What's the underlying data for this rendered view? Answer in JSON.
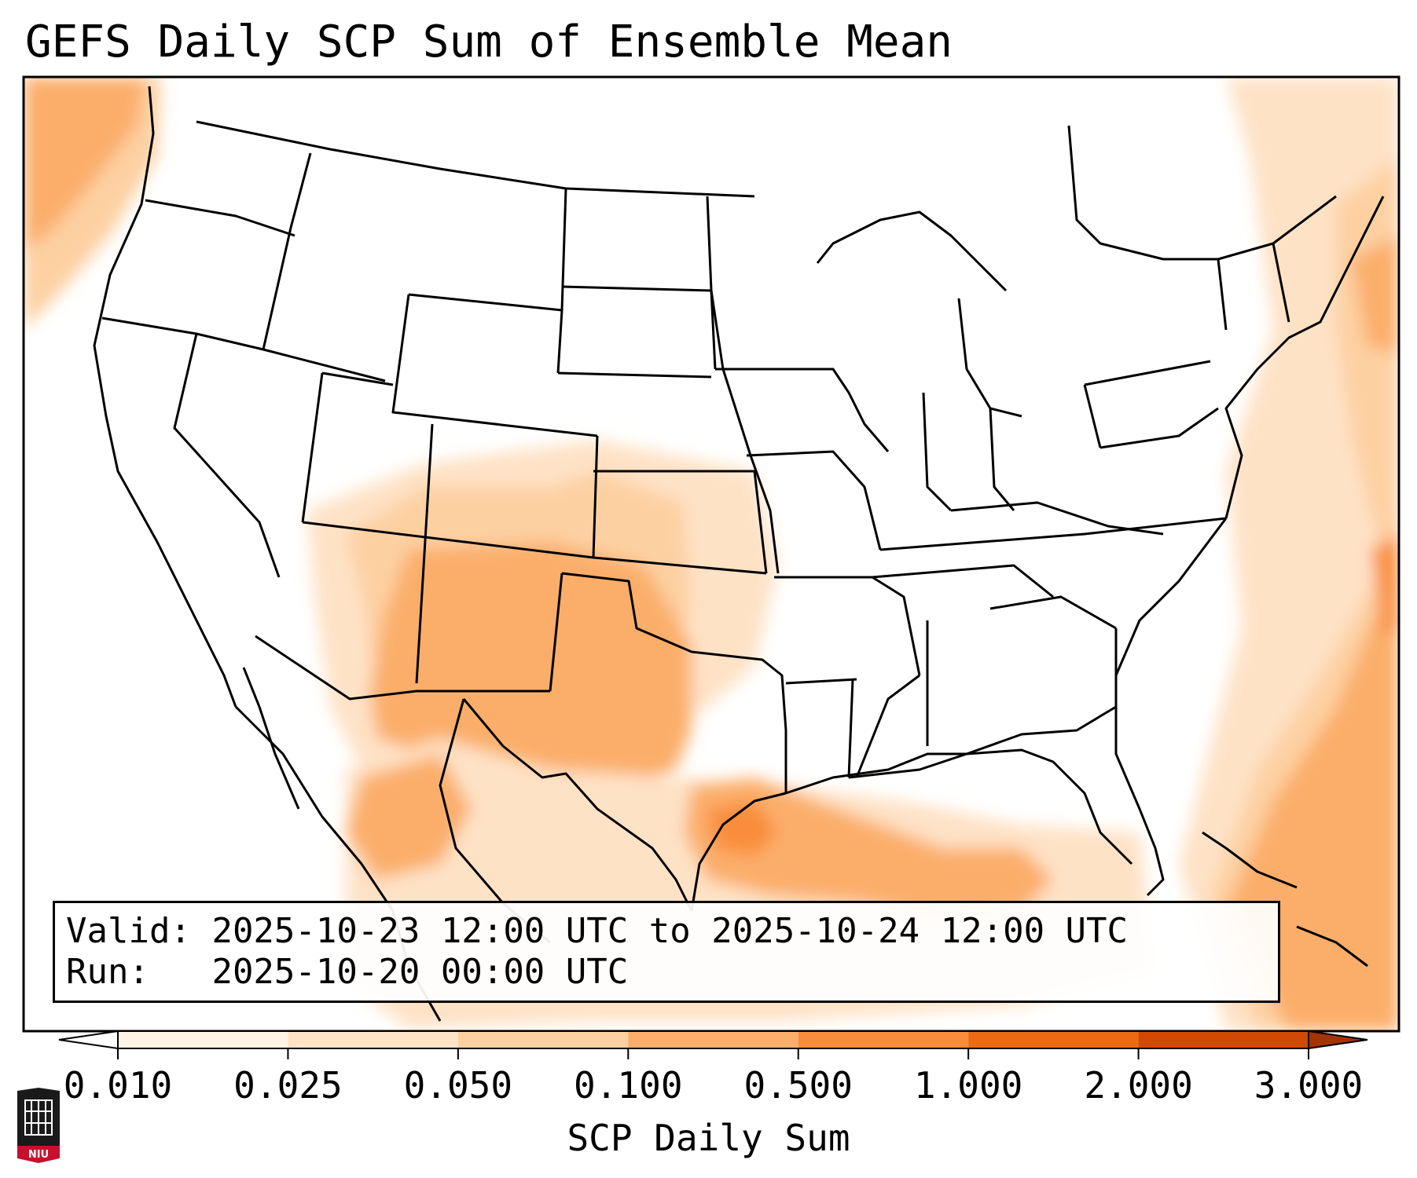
{
  "title": "GEFS Daily SCP Sum of Ensemble Mean",
  "info": {
    "valid_label": "Valid:",
    "valid_value": "2025-10-23 12:00 UTC to 2025-10-24 12:00 UTC",
    "run_label": "Run:",
    "run_value": "2025-10-20 00:00 UTC"
  },
  "colorbar": {
    "label": "SCP Daily Sum",
    "ticks": [
      "0.010",
      "0.025",
      "0.050",
      "0.100",
      "0.500",
      "1.000",
      "2.000",
      "3.000"
    ],
    "colors": [
      "#fff3e6",
      "#fee2c6",
      "#fdd0a2",
      "#fbae6b",
      "#f98d3b",
      "#ec6a12",
      "#d14a03",
      "#a33403"
    ],
    "extend": "both"
  },
  "map": {
    "region": "CONUS",
    "field": "SCP daily sum",
    "high_areas": [
      "Southern Plains",
      "Western Gulf of Mexico",
      "Western Atlantic",
      "Pacific Northwest coast"
    ]
  },
  "logo": {
    "name": "niu-logo",
    "text": "NIU"
  }
}
